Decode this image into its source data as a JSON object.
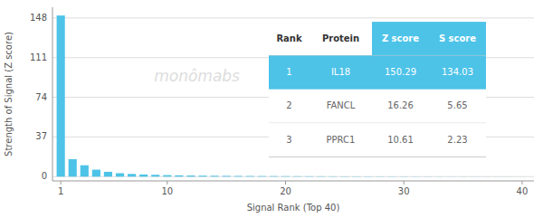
{
  "chart_data": {
    "type": "bar",
    "xlabel": "Signal Rank (Top 40)",
    "ylabel": "Strength of Signal (Z score)",
    "x": [
      1,
      2,
      3,
      4,
      5,
      6,
      7,
      8,
      9,
      10,
      11,
      12,
      13,
      14,
      15,
      16,
      17,
      18,
      19,
      20,
      21,
      22,
      23,
      24,
      25,
      26,
      27,
      28,
      29,
      30,
      31,
      32,
      33,
      34,
      35,
      36,
      37,
      38,
      39,
      40
    ],
    "values": [
      150.29,
      16.26,
      10.61,
      6.5,
      4.5,
      3.2,
      2.5,
      2.0,
      1.7,
      1.4,
      1.2,
      1.05,
      0.9,
      0.8,
      0.72,
      0.65,
      0.58,
      0.52,
      0.47,
      0.43,
      0.39,
      0.35,
      0.32,
      0.29,
      0.26,
      0.24,
      0.22,
      0.2,
      0.18,
      0.16,
      0.14,
      0.13,
      0.11,
      0.1,
      0.09,
      0.08,
      0.07,
      0.06,
      0.05,
      0.04
    ],
    "color": "#4DC3E8",
    "xlim": [
      0.3,
      41
    ],
    "xticks": [
      1,
      10,
      20,
      30,
      40
    ],
    "ylim": [
      -4,
      158
    ],
    "yticks": [
      0,
      37,
      74,
      111,
      148
    ],
    "grid": true,
    "annotations": [
      "monômabs"
    ],
    "table": {
      "header": [
        "Rank",
        "Protein",
        "Z score",
        "S score"
      ],
      "rows": [
        [
          "1",
          "IL18",
          "150.29",
          "134.03"
        ],
        [
          "2",
          "FANCL",
          "16.26",
          "5.65"
        ],
        [
          "3",
          "PPRC1",
          "10.61",
          "2.23"
        ]
      ]
    }
  }
}
